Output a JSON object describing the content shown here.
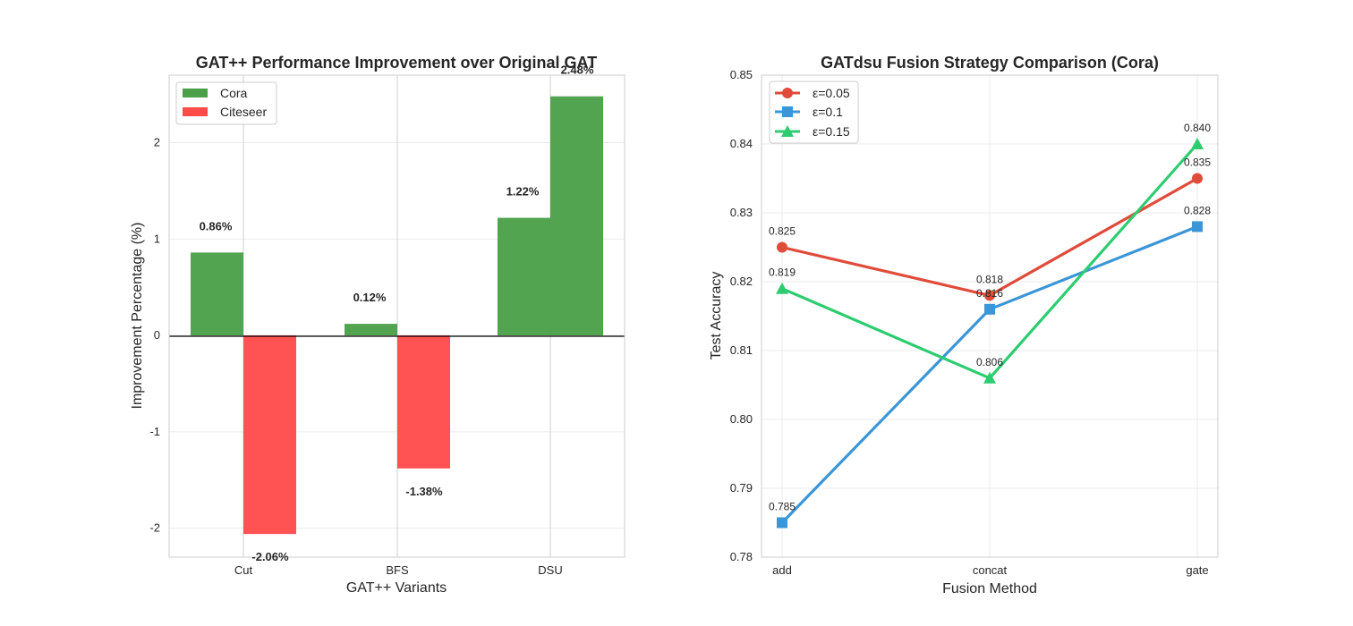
{
  "chart_data": [
    {
      "type": "bar",
      "title": "GAT++ Performance Improvement over Original GAT",
      "xlabel": "GAT++ Variants",
      "ylabel": "Improvement Percentage (%)",
      "categories": [
        "Cut",
        "BFS",
        "DSU"
      ],
      "series": [
        {
          "name": "Cora",
          "values": [
            0.86,
            0.12,
            1.22
          ],
          "color": "#4a9f47",
          "labels": [
            "0.86%",
            "0.12%",
            "1.22%"
          ]
        },
        {
          "name": "Citeseer",
          "values": [
            -2.06,
            -1.38,
            2.48
          ],
          "color": "#ff4a4a",
          "labels": [
            "-2.06%",
            "-1.38%",
            "2.48%"
          ]
        }
      ],
      "bar_color_overrides": [
        {
          "series": 1,
          "index": 2,
          "color": "#4a9f47"
        }
      ],
      "ylim": [
        -2.3,
        2.7
      ],
      "yticks": [
        -2,
        -1,
        0,
        1,
        2
      ],
      "grid": true,
      "zero_line": true,
      "legend_position": "top-left"
    },
    {
      "type": "line",
      "title": "GATdsu Fusion Strategy Comparison (Cora)",
      "xlabel": "Fusion Method",
      "ylabel": "Test Accuracy",
      "categories": [
        "add",
        "concat",
        "gate"
      ],
      "series": [
        {
          "name": "ε=0.05",
          "values": [
            0.825,
            0.818,
            0.835
          ],
          "color": "#e04b3a",
          "marker": "circle",
          "labels": [
            "0.825",
            "0.818",
            "0.835"
          ]
        },
        {
          "name": "ε=0.1",
          "values": [
            0.785,
            0.816,
            0.828
          ],
          "color": "#3a96d6",
          "marker": "square",
          "labels": [
            "0.785",
            "0.816",
            "0.828"
          ]
        },
        {
          "name": "ε=0.15",
          "values": [
            0.819,
            0.806,
            0.84
          ],
          "color": "#2ecc71",
          "marker": "triangle",
          "labels": [
            "0.819",
            "0.806",
            "0.840"
          ]
        }
      ],
      "ylim": [
        0.78,
        0.85
      ],
      "yticks": [
        "0.78",
        "0.79",
        "0.80",
        "0.81",
        "0.82",
        "0.83",
        "0.84",
        "0.85"
      ],
      "grid": true,
      "legend_position": "top-left"
    }
  ]
}
